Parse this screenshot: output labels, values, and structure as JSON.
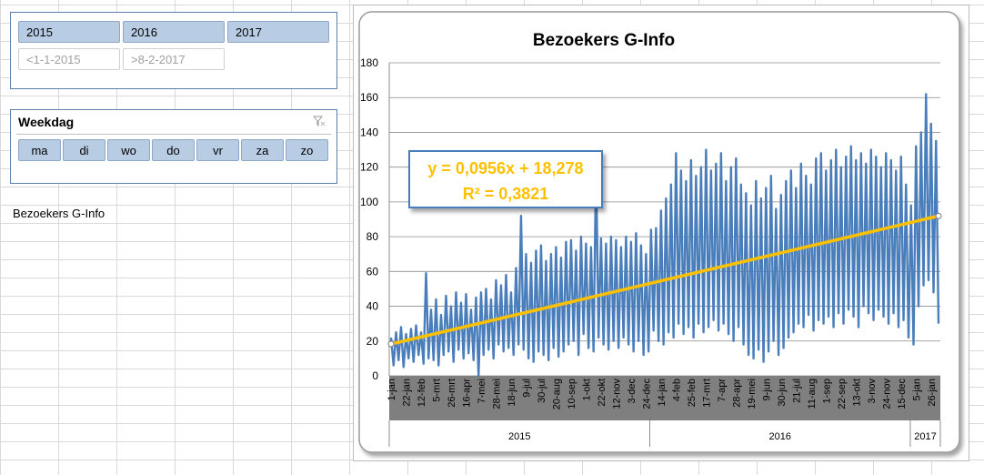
{
  "slicers": {
    "year": {
      "buttons": [
        "2015",
        "2016",
        "2017"
      ],
      "ranges": [
        "<1-1-2015",
        ">8-2-2017"
      ]
    },
    "weekday": {
      "title": "Weekdag",
      "buttons": [
        "ma",
        "di",
        "wo",
        "do",
        "vr",
        "za",
        "zo"
      ]
    }
  },
  "cell_text": "Bezoekers G-Info",
  "chart_data": {
    "type": "line",
    "title": "Bezoekers G-Info",
    "categories": [
      "1-jan",
      null,
      null,
      null,
      null,
      null,
      "22-jan",
      null,
      null,
      null,
      null,
      null,
      "12-feb",
      null,
      null,
      null,
      null,
      null,
      "5-mrt",
      null,
      null,
      null,
      null,
      null,
      "26-mrt",
      null,
      null,
      null,
      null,
      null,
      "16-apr",
      null,
      null,
      null,
      null,
      null,
      "7-mei",
      null,
      null,
      null,
      null,
      null,
      "28-mei",
      null,
      null,
      null,
      null,
      null,
      "18-jun",
      null,
      null,
      null,
      null,
      null,
      "9-jul",
      null,
      null,
      null,
      null,
      null,
      "30-jul",
      null,
      null,
      null,
      null,
      null,
      "20-aug",
      null,
      null,
      null,
      null,
      null,
      "10-sep",
      null,
      null,
      null,
      null,
      null,
      "1-okt",
      null,
      null,
      null,
      null,
      null,
      "22-okt",
      null,
      null,
      null,
      null,
      null,
      "12-nov",
      null,
      null,
      null,
      null,
      null,
      "3-dec",
      null,
      null,
      null,
      null,
      null,
      "24-dec",
      null,
      null,
      null,
      null,
      null,
      "14-jan",
      null,
      null,
      null,
      null,
      null,
      "4-feb",
      null,
      null,
      null,
      null,
      null,
      "25-feb",
      null,
      null,
      null,
      null,
      null,
      "17-mrt",
      null,
      null,
      null,
      null,
      null,
      "7-apr",
      null,
      null,
      null,
      null,
      null,
      "28-apr",
      null,
      null,
      null,
      null,
      null,
      "19-mei",
      null,
      null,
      null,
      null,
      null,
      "9-jun",
      null,
      null,
      null,
      null,
      null,
      "30-jun",
      null,
      null,
      null,
      null,
      null,
      "21-jul",
      null,
      null,
      null,
      null,
      null,
      "11-aug",
      null,
      null,
      null,
      null,
      null,
      "1-sep",
      null,
      null,
      null,
      null,
      null,
      "22-sep",
      null,
      null,
      null,
      null,
      null,
      "13-okt",
      null,
      null,
      null,
      null,
      null,
      "3-nov",
      null,
      null,
      null,
      null,
      null,
      "24-nov",
      null,
      null,
      null,
      null,
      null,
      "15-dec",
      null,
      null,
      null,
      null,
      null,
      "5-jan",
      null,
      null,
      null,
      null,
      null,
      "26-jan",
      null,
      null,
      null
    ],
    "values": [
      22,
      6,
      25,
      9,
      28,
      5,
      24,
      10,
      27,
      8,
      29,
      12,
      25,
      7,
      59,
      10,
      38,
      9,
      44,
      6,
      35,
      12,
      46,
      14,
      40,
      8,
      48,
      15,
      42,
      10,
      47,
      13,
      38,
      9,
      45,
      0,
      48,
      12,
      50,
      15,
      44,
      10,
      55,
      18,
      52,
      14,
      58,
      16,
      48,
      12,
      62,
      18,
      92,
      15,
      70,
      10,
      65,
      8,
      72,
      14,
      75,
      12,
      66,
      9,
      70,
      16,
      74,
      11,
      68,
      14,
      77,
      18,
      78,
      20,
      72,
      12,
      80,
      24,
      76,
      16,
      74,
      14,
      122,
      22,
      79,
      18,
      76,
      15,
      80,
      20,
      78,
      16,
      74,
      22,
      80,
      18,
      77,
      14,
      82,
      20,
      75,
      12,
      70,
      14,
      84,
      26,
      85,
      20,
      95,
      18,
      102,
      25,
      110,
      22,
      128,
      30,
      118,
      24,
      112,
      28,
      124,
      22,
      115,
      30,
      120,
      25,
      130,
      28,
      118,
      32,
      122,
      26,
      128,
      30,
      112,
      24,
      120,
      20,
      125,
      28,
      110,
      18,
      105,
      12,
      98,
      10,
      112,
      15,
      102,
      8,
      108,
      14,
      115,
      20,
      96,
      12,
      104,
      16,
      112,
      22,
      118,
      25,
      108,
      30,
      122,
      28,
      115,
      35,
      110,
      26,
      125,
      32,
      128,
      30,
      118,
      34,
      124,
      28,
      130,
      36,
      120,
      30,
      126,
      38,
      132,
      34,
      124,
      28,
      128,
      40,
      122,
      36,
      130,
      32,
      126,
      38,
      120,
      34,
      128,
      30,
      124,
      36,
      118,
      28,
      126,
      32,
      110,
      22,
      98,
      18,
      132,
      40,
      140,
      52,
      162,
      55,
      145,
      48,
      135,
      30
    ],
    "color": "#4a7ebb",
    "trendline": {
      "values": [
        18.3,
        91.9
      ],
      "color": "#ffc000",
      "equation": "y = 0,0956x + 18,278",
      "r2": "R² = 0,3821"
    },
    "year_groups": [
      "2015",
      "2016",
      "2017"
    ],
    "ylim": [
      0,
      180
    ],
    "yticks": [
      0,
      20,
      40,
      60,
      80,
      100,
      120,
      140,
      160,
      180
    ],
    "grid": true
  }
}
